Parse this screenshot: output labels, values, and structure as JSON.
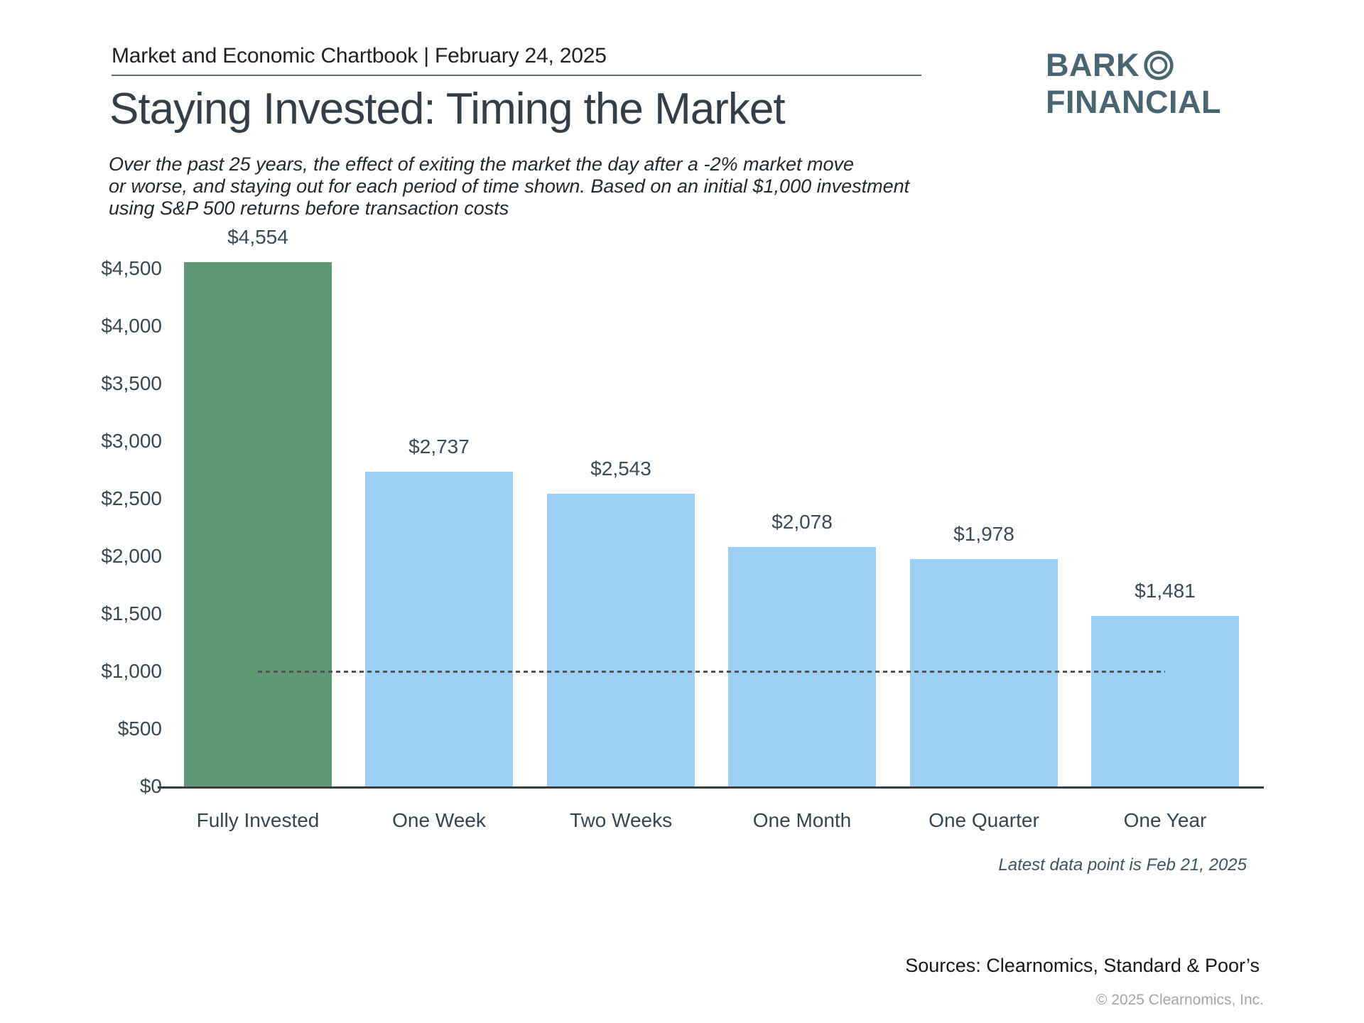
{
  "header": {
    "chartbook_title": "Market and Economic Chartbook | February 24, 2025"
  },
  "logo": {
    "line1": "BARK",
    "line2": "FINANCIAL",
    "icon": "double-ring-circle",
    "color": "#4a6572"
  },
  "title": "Staying Invested: Timing the Market",
  "subtitle": {
    "lines": [
      "Over the past 25 years, the effect of exiting the market the day after a -2% market move",
      "or worse, and staying out for each period of time shown. Based on an initial $1,000 investment",
      "using S&P 500 returns before transaction costs"
    ]
  },
  "chart_data": {
    "type": "bar",
    "title": "Staying Invested: Timing the Market",
    "xlabel": "",
    "ylabel": "",
    "categories": [
      "Fully Invested",
      "One Week",
      "Two Weeks",
      "One Month",
      "One Quarter",
      "One Year"
    ],
    "values": [
      4554,
      2737,
      2543,
      2078,
      1978,
      1481
    ],
    "value_labels": [
      "$4,554",
      "$2,737",
      "$2,543",
      "$2,078",
      "$1,978",
      "$1,481"
    ],
    "bar_colors": [
      "#5f9873",
      "#9bcff4",
      "#9bcff4",
      "#9bcff4",
      "#9bcff4",
      "#9bcff4"
    ],
    "y_tick_values": [
      0,
      500,
      1000,
      1500,
      2000,
      2500,
      3000,
      3500,
      4000,
      4500
    ],
    "y_tick_labels": [
      "$0",
      "$500",
      "$1,000",
      "$1,500",
      "$2,000",
      "$2,500",
      "$3,000",
      "$3,500",
      "$4,000",
      "$4,500"
    ],
    "ylim": [
      0,
      4750
    ],
    "grid": "off",
    "legend": "none",
    "reference_line": {
      "value": 1000,
      "style": "dotted",
      "extent": "bar1-center to bar6-center"
    }
  },
  "footnotes": {
    "latest_data": "Latest data point is Feb 21, 2025",
    "sources": "Sources: Clearnomics, Standard & Poor’s",
    "copyright": "© 2025 Clearnomics, Inc."
  }
}
